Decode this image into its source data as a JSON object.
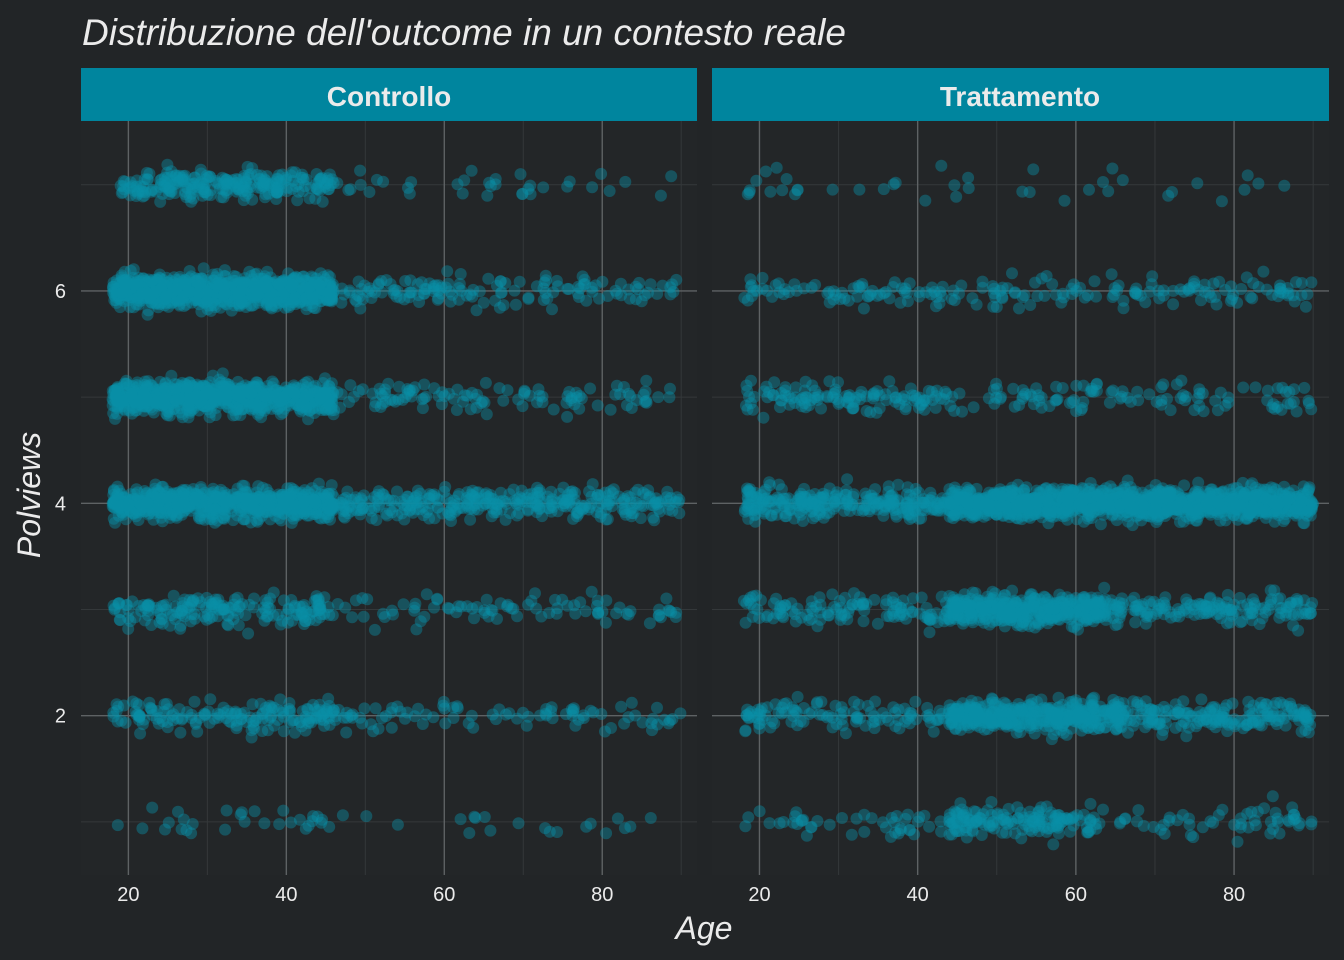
{
  "chart_data": {
    "type": "scatter",
    "title": "Distribuzione dell'outcome in un contesto reale",
    "xlabel": "Age",
    "ylabel": "Polviews",
    "facet_by": "gruppo",
    "facets": [
      "Controllo",
      "Trattamento"
    ],
    "xlim": [
      14,
      92
    ],
    "ylim": [
      0.5,
      7.6
    ],
    "x_ticks": [
      20,
      40,
      60,
      80
    ],
    "y_ticks": [
      2,
      4,
      6
    ],
    "grid": true,
    "point_color": "#0a8fa8",
    "strip_color": "#00859e",
    "background_color": "#222527",
    "panel_color": "#232628",
    "grid_major_color": "#5e6264",
    "grid_minor_color": "#34383a",
    "text_color": "#ebebeb",
    "jitter": true,
    "density_by_facet": [
      {
        "facet": "Controllo",
        "levels": [
          {
            "y": 1,
            "segments": [
              {
                "age_from": 18,
                "age_to": 46,
                "count": 30
              },
              {
                "age_from": 46,
                "age_to": 90,
                "count": 20
              }
            ]
          },
          {
            "y": 2,
            "segments": [
              {
                "age_from": 18,
                "age_to": 46,
                "count": 160
              },
              {
                "age_from": 46,
                "age_to": 90,
                "count": 90
              }
            ]
          },
          {
            "y": 3,
            "segments": [
              {
                "age_from": 18,
                "age_to": 46,
                "count": 180
              },
              {
                "age_from": 46,
                "age_to": 90,
                "count": 85
              }
            ]
          },
          {
            "y": 4,
            "segments": [
              {
                "age_from": 18,
                "age_to": 46,
                "count": 750
              },
              {
                "age_from": 46,
                "age_to": 90,
                "count": 330
              }
            ]
          },
          {
            "y": 5,
            "segments": [
              {
                "age_from": 18,
                "age_to": 46,
                "count": 900
              },
              {
                "age_from": 46,
                "age_to": 90,
                "count": 110
              }
            ]
          },
          {
            "y": 6,
            "segments": [
              {
                "age_from": 18,
                "age_to": 46,
                "count": 1000
              },
              {
                "age_from": 46,
                "age_to": 90,
                "count": 140
              }
            ]
          },
          {
            "y": 7,
            "segments": [
              {
                "age_from": 19,
                "age_to": 46,
                "count": 260
              },
              {
                "age_from": 46,
                "age_to": 90,
                "count": 35
              }
            ]
          }
        ]
      },
      {
        "facet": "Trattamento",
        "levels": [
          {
            "y": 1,
            "segments": [
              {
                "age_from": 18,
                "age_to": 44,
                "count": 45
              },
              {
                "age_from": 44,
                "age_to": 62,
                "count": 150
              },
              {
                "age_from": 62,
                "age_to": 90,
                "count": 60
              }
            ]
          },
          {
            "y": 2,
            "segments": [
              {
                "age_from": 18,
                "age_to": 44,
                "count": 110
              },
              {
                "age_from": 44,
                "age_to": 66,
                "count": 450
              },
              {
                "age_from": 66,
                "age_to": 90,
                "count": 180
              }
            ]
          },
          {
            "y": 3,
            "segments": [
              {
                "age_from": 18,
                "age_to": 44,
                "count": 120
              },
              {
                "age_from": 44,
                "age_to": 64,
                "count": 450
              },
              {
                "age_from": 64,
                "age_to": 90,
                "count": 160
              }
            ]
          },
          {
            "y": 4,
            "segments": [
              {
                "age_from": 18,
                "age_to": 44,
                "count": 280
              },
              {
                "age_from": 44,
                "age_to": 90,
                "count": 1400
              }
            ]
          },
          {
            "y": 5,
            "segments": [
              {
                "age_from": 18,
                "age_to": 44,
                "count": 120
              },
              {
                "age_from": 44,
                "age_to": 90,
                "count": 110
              }
            ]
          },
          {
            "y": 6,
            "segments": [
              {
                "age_from": 18,
                "age_to": 44,
                "count": 70
              },
              {
                "age_from": 44,
                "age_to": 90,
                "count": 120
              }
            ]
          },
          {
            "y": 7,
            "segments": [
              {
                "age_from": 18,
                "age_to": 90,
                "count": 40
              }
            ]
          }
        ]
      }
    ]
  }
}
